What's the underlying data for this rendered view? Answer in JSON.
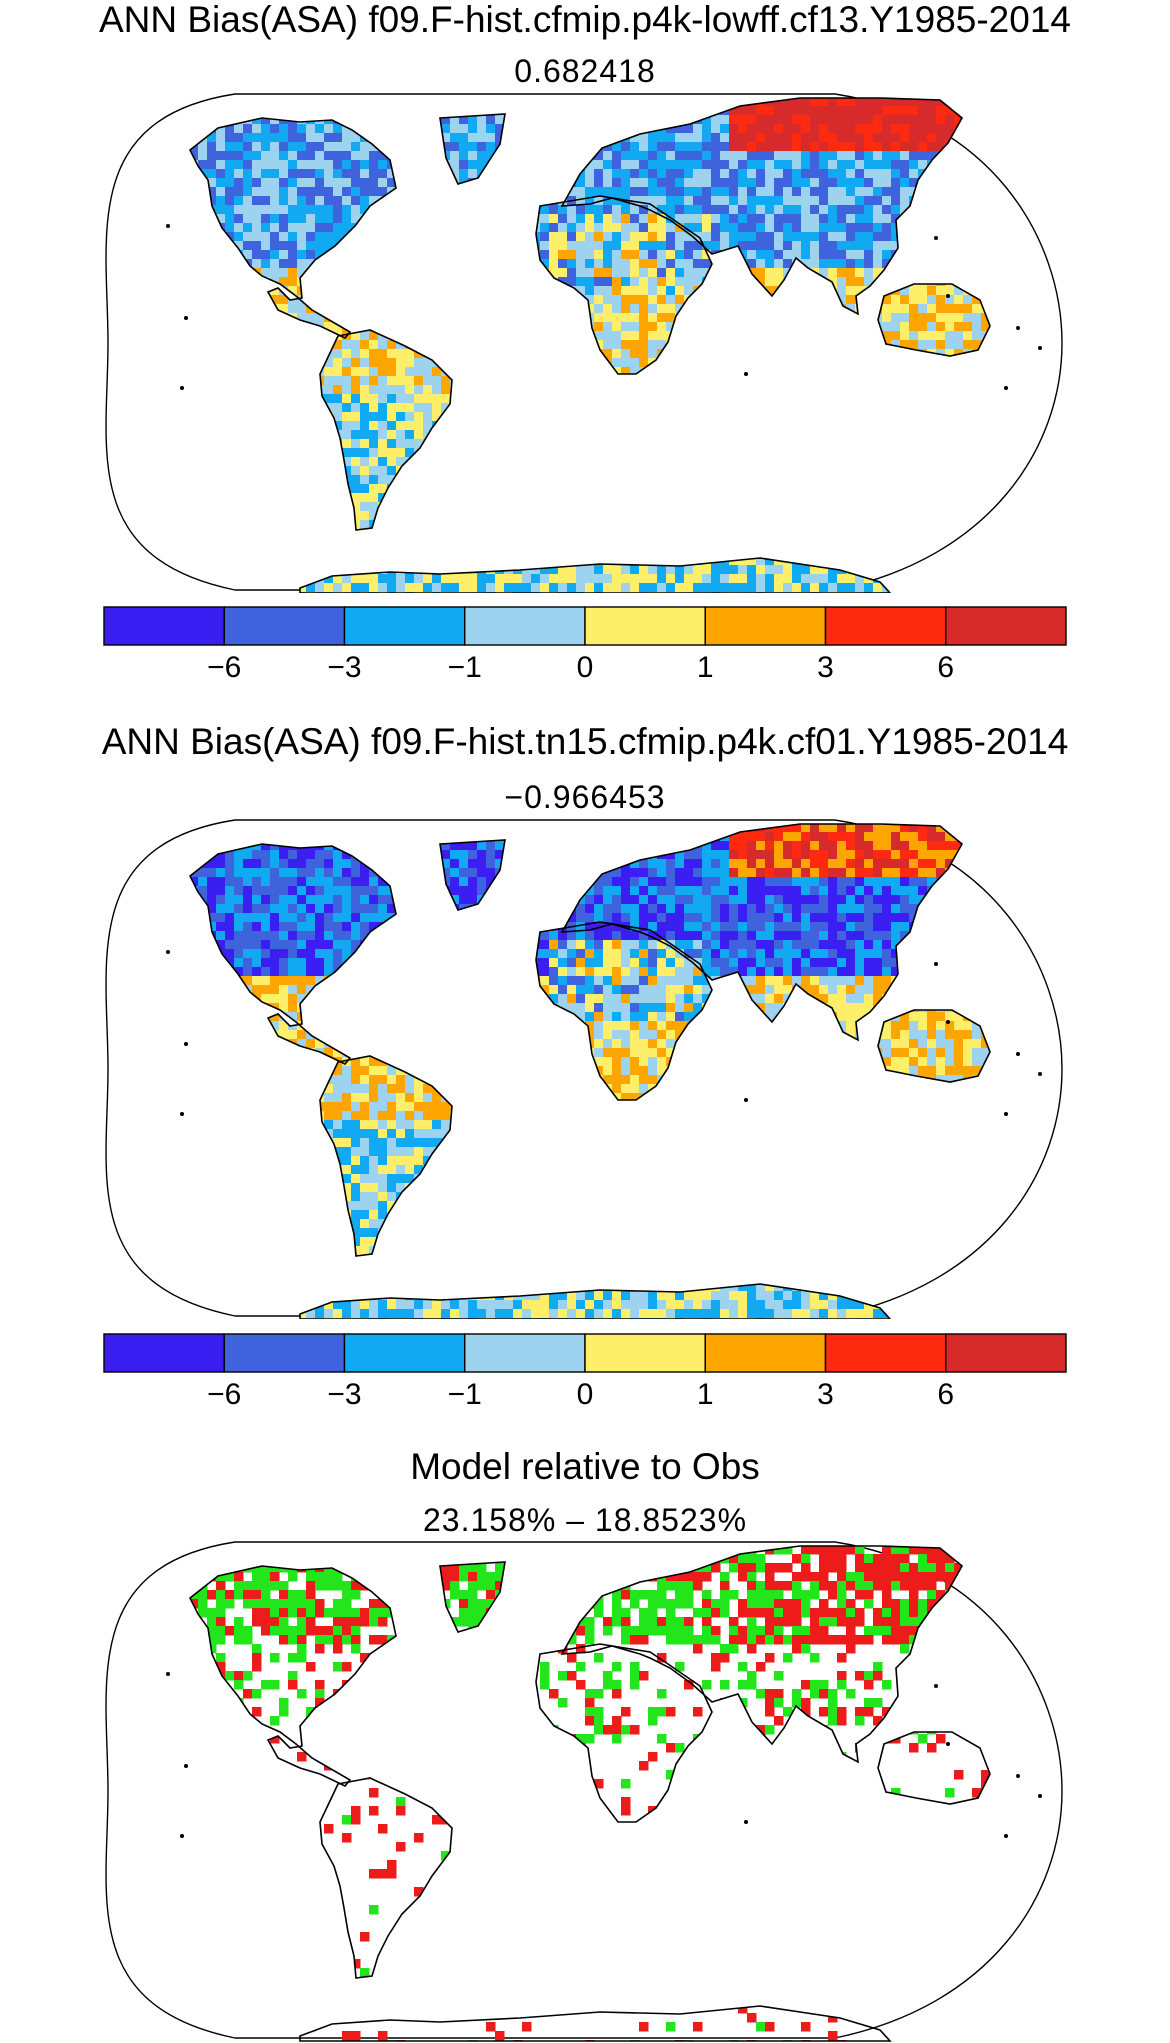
{
  "panels": [
    {
      "title": "ANN Bias(ASA) f09.F-hist.cfmip.p4k-lowff.cf13.Y1985-2014",
      "subtitle": "0.682418",
      "variant": "warm"
    },
    {
      "title": "ANN Bias(ASA) f09.F-hist.tn15.cfmip.p4k.cf01.Y1985-2014",
      "subtitle": "−0.966453",
      "variant": "cool"
    },
    {
      "title": "Model relative to Obs",
      "subtitle": "23.158% – 18.8523%",
      "variant": "compare"
    }
  ],
  "colorbar": {
    "colors": [
      "#3b1ff2",
      "#3f63dc",
      "#11a9f2",
      "#9dd3ef",
      "#fdef6a",
      "#fda500",
      "#fd2a10",
      "#d72a2a"
    ],
    "tick_labels": [
      "−6",
      "−3",
      "−1",
      "0",
      "1",
      "3",
      "6"
    ]
  },
  "compare_colors": {
    "better": "#22e51c",
    "worse": "#ee1b1b"
  }
}
